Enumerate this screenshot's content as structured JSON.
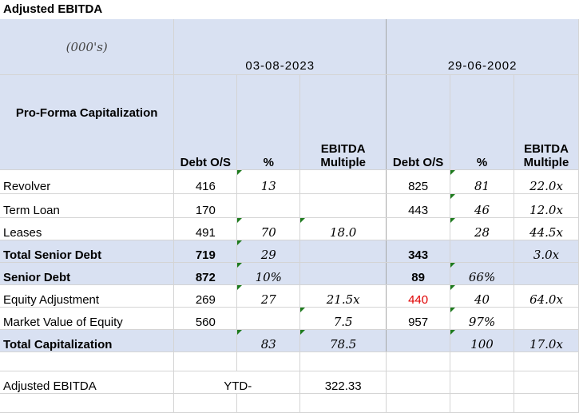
{
  "title": "Adjusted EBITDA",
  "units": "(000's)",
  "date1": "03-08-2023",
  "date2": "29-06-2002",
  "proforma": "Pro-Forma Capitalization",
  "headers": {
    "debt": "Debt O/S",
    "pct": "%",
    "ebitda1": "EBITDA",
    "ebitda2": "Multiple"
  },
  "rows": [
    {
      "label": "Revolver",
      "d1": "416",
      "p1": "13",
      "m1": "",
      "d2": "825",
      "p2": "81",
      "m2": "22.0x"
    },
    {
      "label": "Term Loan",
      "d1": "170",
      "p1": "",
      "m1": "",
      "d2": "443",
      "p2": "46",
      "m2": "12.0x"
    },
    {
      "label": "Leases",
      "d1": "491",
      "p1": "70",
      "m1": "18.0",
      "d2": "",
      "p2": "28",
      "m2": "44.5x"
    },
    {
      "label": "Total Senior Debt",
      "d1": "719",
      "p1": "29",
      "m1": "",
      "d2": "343",
      "p2": "",
      "m2": "3.0x"
    },
    {
      "label": "Senior Debt",
      "d1": "872",
      "p1": "10%",
      "m1": "",
      "d2": "89",
      "p2": "66%",
      "m2": ""
    },
    {
      "label": "Equity Adjustment",
      "d1": "269",
      "p1": "27",
      "m1": "21.5x",
      "d2": "440",
      "p2": "40",
      "m2": "64.0x"
    },
    {
      "label": "Market Value of Equity",
      "d1": "560",
      "p1": "",
      "m1": "7.5",
      "d2": "957",
      "p2": "97%",
      "m2": ""
    },
    {
      "label": "Total Capitalization",
      "d1": "",
      "p1": "83",
      "m1": "78.5",
      "d2": "",
      "p2": "100",
      "m2": "17.0x"
    }
  ],
  "footer": {
    "label": "Adjusted EBITDA",
    "ytd": "YTD-",
    "value": "322.33"
  }
}
